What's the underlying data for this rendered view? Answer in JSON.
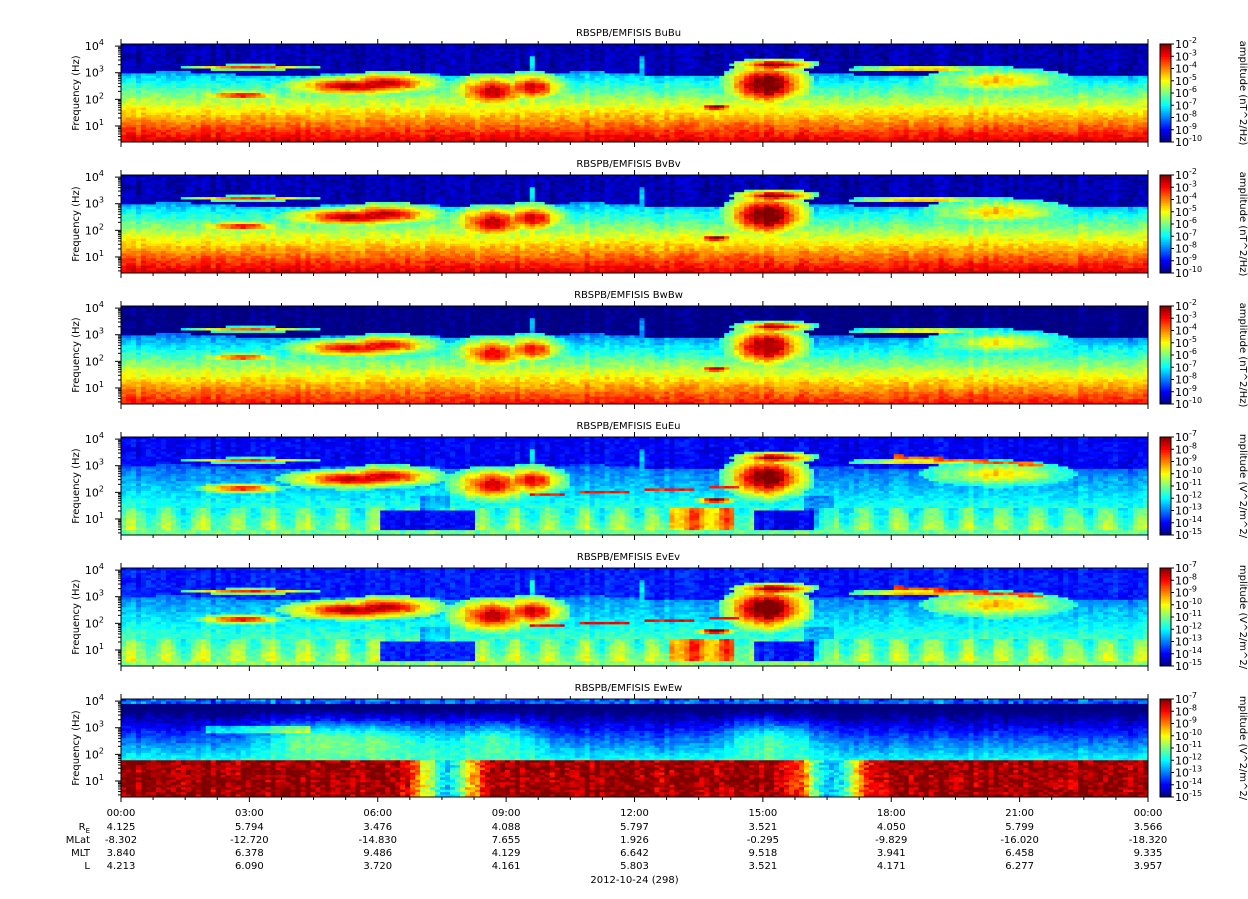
{
  "chart_data": [
    {
      "type": "heatmap",
      "title": "RBSPB/EMFISIS  BuBu",
      "ylabel": "Frequency (Hz)",
      "yscale": "log",
      "ylim": [
        2.5,
        12000
      ],
      "yticks": [
        10,
        100,
        1000,
        10000
      ],
      "colorbar": {
        "label": "amplitude (nT^2/Hz)",
        "scale": "log",
        "ticks": [
          -10,
          -9,
          -8,
          -7,
          -6,
          -5,
          -4,
          -3,
          -2
        ]
      },
      "profile": "B",
      "tint": 0
    },
    {
      "type": "heatmap",
      "title": "RBSPB/EMFISIS  BvBv",
      "ylabel": "Frequency (Hz)",
      "yscale": "log",
      "ylim": [
        2.5,
        12000
      ],
      "yticks": [
        10,
        100,
        1000,
        10000
      ],
      "colorbar": {
        "label": "amplitude (nT^2/Hz)",
        "scale": "log",
        "ticks": [
          -10,
          -9,
          -8,
          -7,
          -6,
          -5,
          -4,
          -3,
          -2
        ]
      },
      "profile": "B",
      "tint": 0
    },
    {
      "type": "heatmap",
      "title": "RBSPB/EMFISIS  BwBw",
      "ylabel": "Frequency (Hz)",
      "yscale": "log",
      "ylim": [
        2.5,
        12000
      ],
      "yticks": [
        10,
        100,
        1000,
        10000
      ],
      "colorbar": {
        "label": "amplitude (nT^2/Hz)",
        "scale": "log",
        "ticks": [
          -10,
          -9,
          -8,
          -7,
          -6,
          -5,
          -4,
          -3,
          -2
        ]
      },
      "profile": "B",
      "tint": -0.05
    },
    {
      "type": "heatmap",
      "title": "RBSPB/EMFISIS  EuEu",
      "ylabel": "Frequency (Hz)",
      "yscale": "log",
      "ylim": [
        2.5,
        12000
      ],
      "yticks": [
        10,
        100,
        1000,
        10000
      ],
      "colorbar": {
        "label": "mplitude (V^2/m^2/",
        "scale": "log",
        "ticks": [
          -15,
          -14,
          -13,
          -12,
          -11,
          -10,
          -9,
          -8,
          -7
        ]
      },
      "profile": "E",
      "tint": 0
    },
    {
      "type": "heatmap",
      "title": "RBSPB/EMFISIS  EvEv",
      "ylabel": "Frequency (Hz)",
      "yscale": "log",
      "ylim": [
        2.5,
        12000
      ],
      "yticks": [
        10,
        100,
        1000,
        10000
      ],
      "colorbar": {
        "label": "mplitude (V^2/m^2/",
        "scale": "log",
        "ticks": [
          -15,
          -14,
          -13,
          -12,
          -11,
          -10,
          -9,
          -8,
          -7
        ]
      },
      "profile": "E",
      "tint": 0.03
    },
    {
      "type": "heatmap",
      "title": "RBSPB/EMFISIS  EwEw",
      "ylabel": "Frequency (Hz)",
      "yscale": "log",
      "ylim": [
        2.5,
        12000
      ],
      "yticks": [
        10,
        100,
        1000,
        10000
      ],
      "colorbar": {
        "label": "mplitude (V^2/m^2/",
        "scale": "log",
        "ticks": [
          -15,
          -14,
          -13,
          -12,
          -11,
          -10,
          -9,
          -8,
          -7
        ]
      },
      "profile": "W",
      "tint": 0
    }
  ],
  "time_axis": {
    "ticks": [
      "00:00",
      "03:00",
      "06:00",
      "09:00",
      "12:00",
      "15:00",
      "18:00",
      "21:00",
      "00:00"
    ],
    "minor_per_major": 3,
    "date_label": "2012-10-24 (298)"
  },
  "ephemeris": {
    "labels": [
      "R",
      "MLat",
      "MLT",
      "L"
    ],
    "subscript": "E",
    "rows": [
      [
        "4.125",
        "5.794",
        "3.476",
        "4.088",
        "5.797",
        "3.521",
        "4.050",
        "5.799",
        "3.566"
      ],
      [
        "-8.302",
        "-12.720",
        "-14.830",
        "7.655",
        "1.926",
        "-0.295",
        "-9.829",
        "-16.020",
        "-18.320"
      ],
      [
        "3.840",
        "6.378",
        "9.486",
        "4.129",
        "6.642",
        "9.518",
        "3.941",
        "6.458",
        "9.335"
      ],
      [
        "4.213",
        "6.090",
        "3.720",
        "4.161",
        "5.803",
        "3.521",
        "4.171",
        "6.277",
        "3.957"
      ]
    ]
  }
}
